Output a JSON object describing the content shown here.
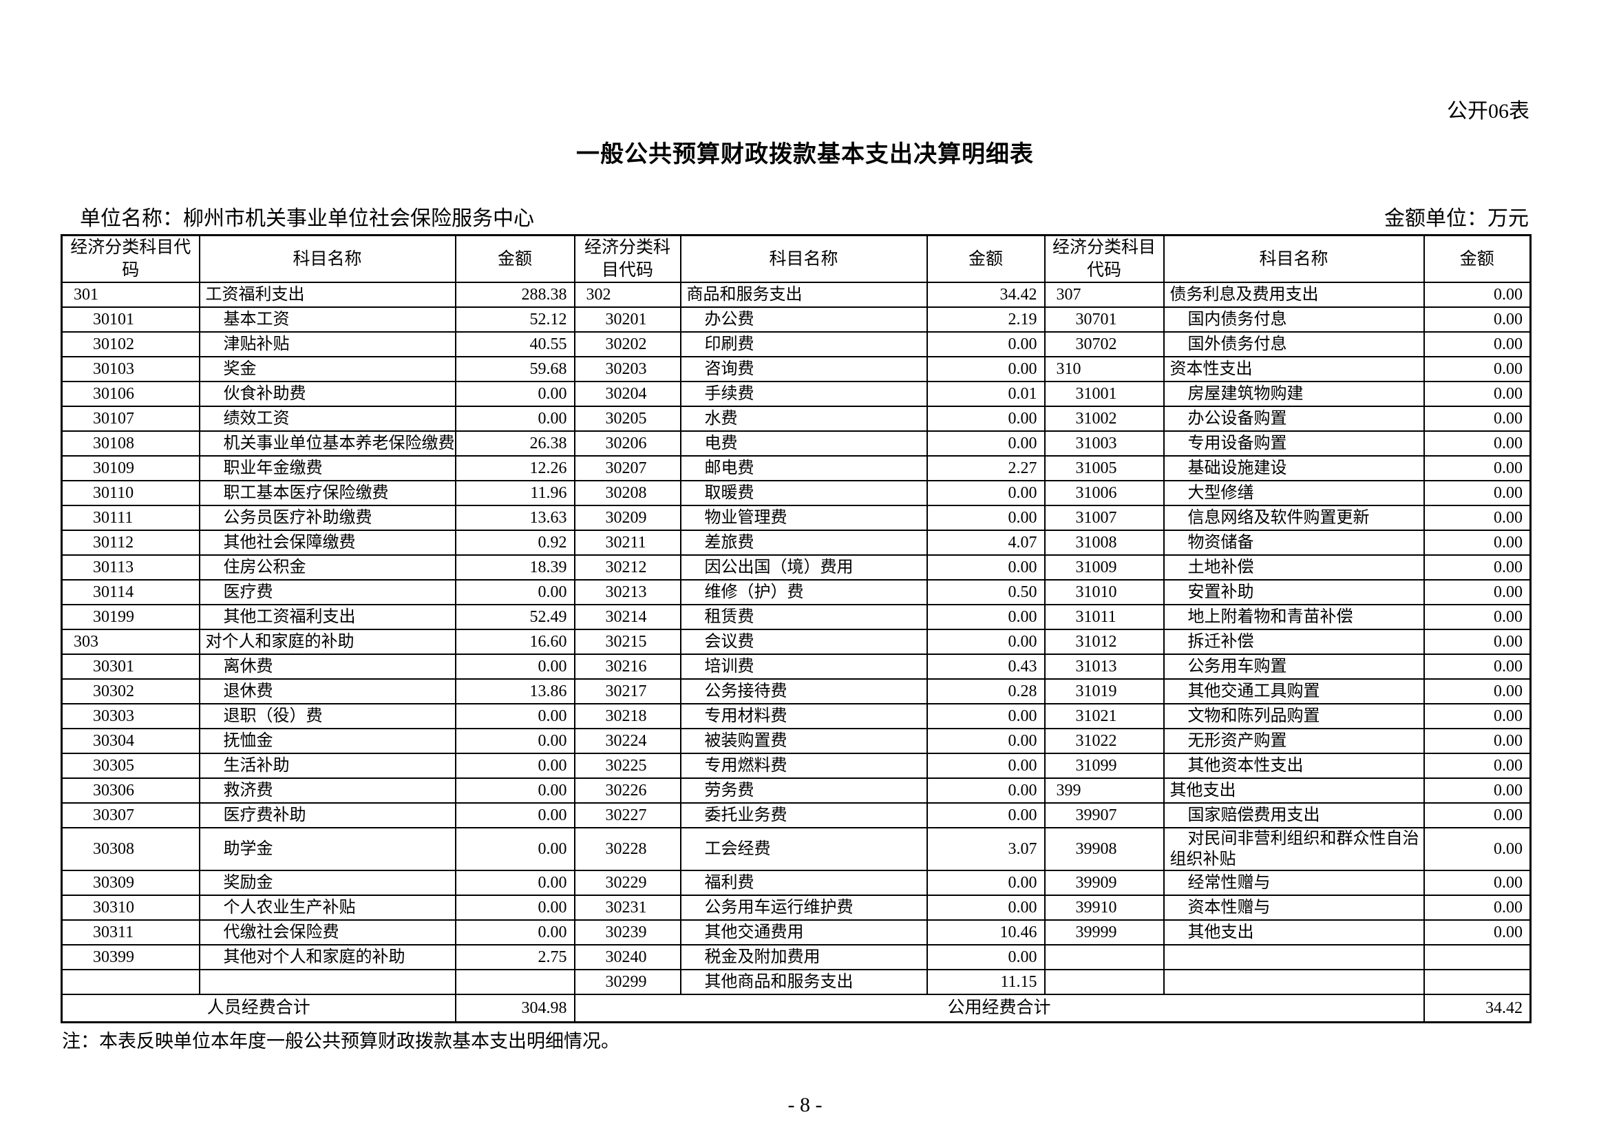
{
  "page": {
    "form_label": "公开06表",
    "title": "一般公共预算财政拨款基本支出决算明细表",
    "unit_name": "单位名称：柳州市机关事业单位社会保险服务中心",
    "amount_unit": "金额单位：万元",
    "note": "注：本表反映单位本年度一般公共预算财政拨款基本支出明细情况。",
    "page_number": "- 8 -"
  },
  "colors": {
    "text": "#000000",
    "border": "#000000",
    "background": "#ffffff"
  },
  "table": {
    "header": {
      "code": "经济分类科目代码",
      "name": "科目名称",
      "amount": "金额"
    },
    "rows": [
      [
        "301",
        "工资福利支出",
        "288.38",
        "302",
        "商品和服务支出",
        "34.42",
        "307",
        "债务利息及费用支出",
        "0.00"
      ],
      [
        "30101",
        "基本工资",
        "52.12",
        "30201",
        "办公费",
        "2.19",
        "30701",
        "国内债务付息",
        "0.00"
      ],
      [
        "30102",
        "津贴补贴",
        "40.55",
        "30202",
        "印刷费",
        "0.00",
        "30702",
        "国外债务付息",
        "0.00"
      ],
      [
        "30103",
        "奖金",
        "59.68",
        "30203",
        "咨询费",
        "0.00",
        "310",
        "资本性支出",
        "0.00"
      ],
      [
        "30106",
        "伙食补助费",
        "0.00",
        "30204",
        "手续费",
        "0.01",
        "31001",
        "房屋建筑物购建",
        "0.00"
      ],
      [
        "30107",
        "绩效工资",
        "0.00",
        "30205",
        "水费",
        "0.00",
        "31002",
        "办公设备购置",
        "0.00"
      ],
      [
        "30108",
        "机关事业单位基本养老保险缴费",
        "26.38",
        "30206",
        "电费",
        "0.00",
        "31003",
        "专用设备购置",
        "0.00"
      ],
      [
        "30109",
        "职业年金缴费",
        "12.26",
        "30207",
        "邮电费",
        "2.27",
        "31005",
        "基础设施建设",
        "0.00"
      ],
      [
        "30110",
        "职工基本医疗保险缴费",
        "11.96",
        "30208",
        "取暖费",
        "0.00",
        "31006",
        "大型修缮",
        "0.00"
      ],
      [
        "30111",
        "公务员医疗补助缴费",
        "13.63",
        "30209",
        "物业管理费",
        "0.00",
        "31007",
        "信息网络及软件购置更新",
        "0.00"
      ],
      [
        "30112",
        "其他社会保障缴费",
        "0.92",
        "30211",
        "差旅费",
        "4.07",
        "31008",
        "物资储备",
        "0.00"
      ],
      [
        "30113",
        "住房公积金",
        "18.39",
        "30212",
        "因公出国（境）费用",
        "0.00",
        "31009",
        "土地补偿",
        "0.00"
      ],
      [
        "30114",
        "医疗费",
        "0.00",
        "30213",
        "维修（护）费",
        "0.50",
        "31010",
        "安置补助",
        "0.00"
      ],
      [
        "30199",
        "其他工资福利支出",
        "52.49",
        "30214",
        "租赁费",
        "0.00",
        "31011",
        "地上附着物和青苗补偿",
        "0.00"
      ],
      [
        "303",
        "对个人和家庭的补助",
        "16.60",
        "30215",
        "会议费",
        "0.00",
        "31012",
        "拆迁补偿",
        "0.00"
      ],
      [
        "30301",
        "离休费",
        "0.00",
        "30216",
        "培训费",
        "0.43",
        "31013",
        "公务用车购置",
        "0.00"
      ],
      [
        "30302",
        "退休费",
        "13.86",
        "30217",
        "公务接待费",
        "0.28",
        "31019",
        "其他交通工具购置",
        "0.00"
      ],
      [
        "30303",
        "退职（役）费",
        "0.00",
        "30218",
        "专用材料费",
        "0.00",
        "31021",
        "文物和陈列品购置",
        "0.00"
      ],
      [
        "30304",
        "抚恤金",
        "0.00",
        "30224",
        "被装购置费",
        "0.00",
        "31022",
        "无形资产购置",
        "0.00"
      ],
      [
        "30305",
        "生活补助",
        "0.00",
        "30225",
        "专用燃料费",
        "0.00",
        "31099",
        "其他资本性支出",
        "0.00"
      ],
      [
        "30306",
        "救济费",
        "0.00",
        "30226",
        "劳务费",
        "0.00",
        "399",
        "其他支出",
        "0.00"
      ],
      [
        "30307",
        "医疗费补助",
        "0.00",
        "30227",
        "委托业务费",
        "0.00",
        "39907",
        "国家赔偿费用支出",
        "0.00"
      ],
      [
        "30308",
        "助学金",
        "0.00",
        "30228",
        "工会经费",
        "3.07",
        "39908",
        "对民间非营利组织和群众性自治组织补贴",
        "0.00"
      ],
      [
        "30309",
        "奖励金",
        "0.00",
        "30229",
        "福利费",
        "0.00",
        "39909",
        "经常性赠与",
        "0.00"
      ],
      [
        "30310",
        "个人农业生产补贴",
        "0.00",
        "30231",
        "公务用车运行维护费",
        "0.00",
        "39910",
        "资本性赠与",
        "0.00"
      ],
      [
        "30311",
        "代缴社会保险费",
        "0.00",
        "30239",
        "其他交通费用",
        "10.46",
        "39999",
        "其他支出",
        "0.00"
      ],
      [
        "30399",
        "其他对个人和家庭的补助",
        "2.75",
        "30240",
        "税金及附加费用",
        "0.00",
        "",
        "",
        ""
      ],
      [
        "",
        "",
        "",
        "30299",
        "其他商品和服务支出",
        "11.15",
        "",
        "",
        ""
      ]
    ],
    "totals": {
      "personnel_label": "人员经费合计",
      "personnel_amount": "304.98",
      "public_label": "公用经费合计",
      "public_amount": "34.42"
    }
  }
}
